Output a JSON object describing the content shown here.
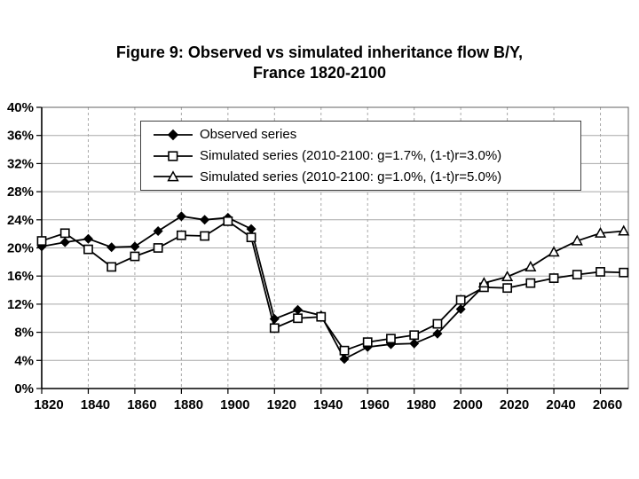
{
  "title": {
    "line1": "Figure 9: Observed vs simulated inheritance flow B/Y,",
    "line2": "France 1820-2100"
  },
  "colors": {
    "series": "#000000",
    "grid": "#a8a8a8",
    "plot_border": "#606060",
    "axis": "#000000",
    "background": "#ffffff",
    "marker_fill_open": "#ffffff"
  },
  "chart_data": {
    "type": "line",
    "title": "Figure 9: Observed vs simulated inheritance flow B/Y, France 1820-2100",
    "xlabel": "",
    "ylabel": "",
    "x": [
      1820,
      1830,
      1840,
      1850,
      1860,
      1870,
      1880,
      1890,
      1900,
      1910,
      1920,
      1930,
      1940,
      1950,
      1960,
      1970,
      1980,
      1990,
      2000,
      2010,
      2020,
      2030,
      2040,
      2050,
      2060,
      2070
    ],
    "series": [
      {
        "name": "Observed series",
        "marker": "diamond",
        "values": [
          20.2,
          20.8,
          21.3,
          20.1,
          20.2,
          22.4,
          24.5,
          24.0,
          24.3,
          22.7,
          9.9,
          11.2,
          10.4,
          4.2,
          5.9,
          6.3,
          6.4,
          7.8,
          11.3,
          14.6,
          null,
          null,
          null,
          null,
          null,
          null
        ]
      },
      {
        "name": "Simulated series (2010-2100: g=1.7%, (1-t)r=3.0%)",
        "marker": "square",
        "values": [
          21.0,
          22.1,
          19.8,
          17.3,
          18.8,
          20.0,
          21.8,
          21.7,
          23.8,
          21.5,
          8.6,
          10.0,
          10.2,
          5.4,
          6.6,
          7.1,
          7.6,
          9.2,
          12.6,
          14.4,
          14.3,
          15.0,
          15.7,
          16.2,
          16.6,
          16.5
        ]
      },
      {
        "name": "Simulated series (2010-2100: g=1.0%, (1-t)r=5.0%)",
        "marker": "triangle",
        "values": [
          null,
          null,
          null,
          null,
          null,
          null,
          null,
          null,
          null,
          null,
          null,
          null,
          null,
          null,
          null,
          null,
          null,
          null,
          null,
          15.0,
          15.9,
          17.3,
          19.4,
          21.0,
          22.1,
          22.4
        ]
      }
    ],
    "ylim": [
      0,
      40
    ],
    "yticks": [
      0,
      4,
      8,
      12,
      16,
      20,
      24,
      28,
      32,
      36,
      40
    ],
    "ytick_labels": [
      "0%",
      "4%",
      "8%",
      "12%",
      "16%",
      "20%",
      "24%",
      "28%",
      "32%",
      "36%",
      "40%"
    ],
    "xlim": [
      1820,
      2072
    ],
    "xticks": [
      1820,
      1840,
      1860,
      1880,
      1900,
      1920,
      1940,
      1960,
      1980,
      2000,
      2020,
      2040,
      2060
    ],
    "xtick_labels": [
      "1820",
      "1840",
      "1860",
      "1880",
      "1900",
      "1920",
      "1940",
      "1960",
      "1980",
      "2000",
      "2020",
      "2040",
      "2060"
    ],
    "grid": {
      "horizontal": "solid",
      "vertical": "dashed"
    },
    "legend_position": "inside-top-center"
  }
}
